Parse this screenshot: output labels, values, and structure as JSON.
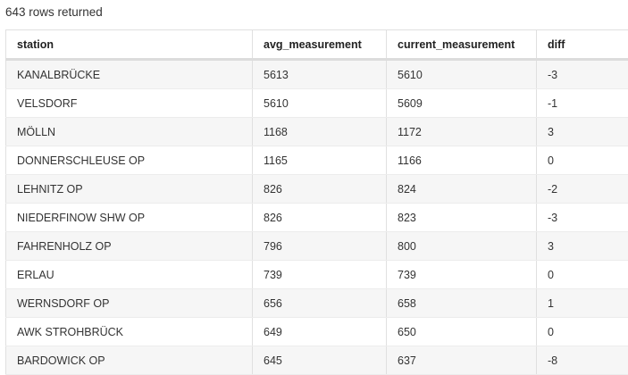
{
  "status": "643 rows returned",
  "columns": [
    "station",
    "avg_measurement",
    "current_measurement",
    "diff"
  ],
  "rows": [
    [
      "KANALBRÜCKE",
      "5613",
      "5610",
      "-3"
    ],
    [
      "VELSDORF",
      "5610",
      "5609",
      "-1"
    ],
    [
      "MÖLLN",
      "1168",
      "1172",
      "3"
    ],
    [
      "DONNERSCHLEUSE OP",
      "1165",
      "1166",
      "0"
    ],
    [
      "LEHNITZ OP",
      "826",
      "824",
      "-2"
    ],
    [
      "NIEDERFINOW SHW OP",
      "826",
      "823",
      "-3"
    ],
    [
      "FAHRENHOLZ OP",
      "796",
      "800",
      "3"
    ],
    [
      "ERLAU",
      "739",
      "739",
      "0"
    ],
    [
      "WERNSDORF OP",
      "656",
      "658",
      "1"
    ],
    [
      "AWK STROHBRÜCK",
      "649",
      "650",
      "0"
    ],
    [
      "BARDOWICK OP",
      "645",
      "637",
      "-8"
    ]
  ]
}
